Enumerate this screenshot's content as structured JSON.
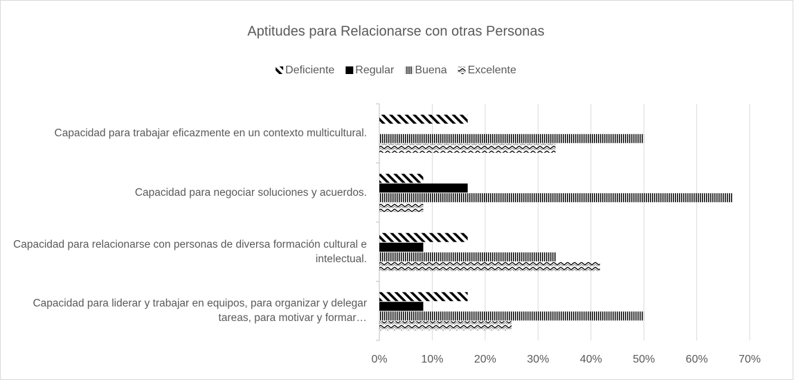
{
  "chart_data": {
    "type": "hbar",
    "title": "Aptitudes para Relacionarse con otras Personas",
    "categories": [
      "Capacidad para trabajar eficazmente en un contexto multicultural.",
      "Capacidad para negociar soluciones y acuerdos.",
      "Capacidad para relacionarse con personas de diversa formación cultural e intelectual.",
      "Capacidad para liderar y trabajar en equipos, para organizar y delegar tareas, para motivar y formar…"
    ],
    "series": [
      {
        "name": "Deficiente",
        "color": "#000000",
        "pattern": "diagonal",
        "values": [
          16.7,
          8.3,
          16.7,
          16.7
        ]
      },
      {
        "name": "Regular",
        "color": "#000000",
        "pattern": "solid",
        "values": [
          0,
          16.7,
          8.3,
          8.3
        ]
      },
      {
        "name": "Buena",
        "color": "#000000",
        "pattern": "vertical",
        "values": [
          50,
          66.7,
          33.3,
          50
        ]
      },
      {
        "name": "Excelente",
        "color": "#000000",
        "pattern": "zigzag",
        "values": [
          33.3,
          8.3,
          41.7,
          25
        ]
      }
    ],
    "xlim": [
      0,
      70
    ],
    "xticks": [
      {
        "value": 0,
        "label": "0%"
      },
      {
        "value": 10,
        "label": "10%"
      },
      {
        "value": 20,
        "label": "20%"
      },
      {
        "value": 30,
        "label": "30%"
      },
      {
        "value": 40,
        "label": "40%"
      },
      {
        "value": 50,
        "label": "50%"
      },
      {
        "value": 60,
        "label": "60%"
      },
      {
        "value": 70,
        "label": "70%"
      }
    ],
    "grid": true,
    "legend": "top"
  }
}
